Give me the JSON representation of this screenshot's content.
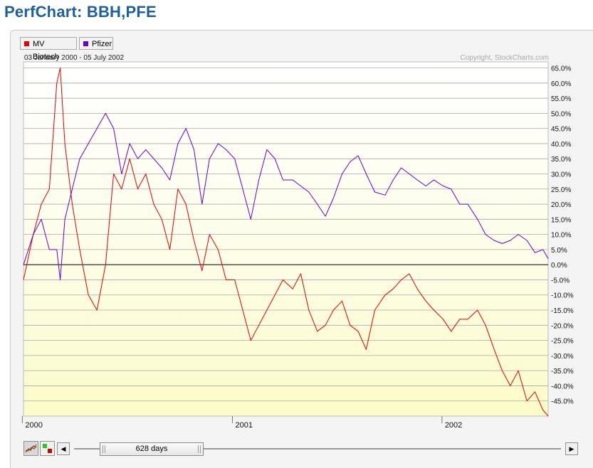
{
  "title": "PerfChart: BBH,PFE",
  "legend": [
    {
      "label": "MV Biotech",
      "color": "#e60000"
    },
    {
      "label": "Pfizer",
      "color": "#6600cc"
    }
  ],
  "date_range": "03 January 2000 - 05 July 2002",
  "copyright": "Copyright, StockCharts.com",
  "scrollbar": {
    "days_label": "628 days"
  },
  "chart_data": {
    "type": "line",
    "x_ticks": [
      "2000",
      "2001",
      "2002"
    ],
    "y_ticks": [
      "65.0%",
      "60.0%",
      "55.0%",
      "50.0%",
      "45.0%",
      "40.0%",
      "35.0%",
      "30.0%",
      "25.0%",
      "20.0%",
      "15.0%",
      "10.0%",
      "5.0%",
      "0.0%",
      "-5.0%",
      "-10.0%",
      "-15.0%",
      "-20.0%",
      "-25.0%",
      "-30.0%",
      "-35.0%",
      "-40.0%",
      "-45.0%"
    ],
    "ylim": [
      -50,
      67
    ],
    "grid": true,
    "x": [
      "2000-01-03",
      "2000-01-20",
      "2000-02-03",
      "2000-02-17",
      "2000-03-01",
      "2000-03-07",
      "2000-03-15",
      "2000-03-28",
      "2000-04-10",
      "2000-04-25",
      "2000-05-10",
      "2000-05-25",
      "2000-06-08",
      "2000-06-22",
      "2000-07-06",
      "2000-07-20",
      "2000-08-03",
      "2000-08-17",
      "2000-08-31",
      "2000-09-14",
      "2000-09-28",
      "2000-10-12",
      "2000-10-26",
      "2000-11-09",
      "2000-11-22",
      "2000-12-07",
      "2000-12-21",
      "2001-01-05",
      "2001-01-19",
      "2001-02-02",
      "2001-02-16",
      "2001-03-02",
      "2001-03-16",
      "2001-03-30",
      "2001-04-16",
      "2001-04-30",
      "2001-05-14",
      "2001-05-29",
      "2001-06-12",
      "2001-06-26",
      "2001-07-11",
      "2001-07-25",
      "2001-08-08",
      "2001-08-22",
      "2001-09-06",
      "2001-09-24",
      "2001-10-08",
      "2001-10-22",
      "2001-11-05",
      "2001-11-19",
      "2001-12-04",
      "2001-12-18",
      "2002-01-03",
      "2002-01-17",
      "2002-02-01",
      "2002-02-15",
      "2002-03-04",
      "2002-03-18",
      "2002-04-02",
      "2002-04-16",
      "2002-04-30",
      "2002-05-14",
      "2002-05-29",
      "2002-06-12",
      "2002-06-26",
      "2002-07-05"
    ],
    "series": [
      {
        "name": "MV Biotech",
        "values": [
          -5,
          10,
          20,
          25,
          60,
          65,
          40,
          20,
          5,
          -10,
          -15,
          0,
          30,
          25,
          35,
          25,
          30,
          20,
          15,
          5,
          25,
          20,
          8,
          -2,
          10,
          5,
          -5,
          -5,
          -15,
          -25,
          -20,
          -15,
          -10,
          -5,
          -8,
          -3,
          -15,
          -22,
          -20,
          -15,
          -12,
          -20,
          -22,
          -28,
          -15,
          -10,
          -8,
          -5,
          -3,
          -8,
          -12,
          -15,
          -18,
          -22,
          -18,
          -18,
          -15,
          -20,
          -28,
          -35,
          -40,
          -35,
          -45,
          -42,
          -48,
          -50
        ]
      },
      {
        "name": "Pfizer",
        "values": [
          0,
          10,
          15,
          5,
          5,
          -5,
          15,
          25,
          35,
          40,
          45,
          50,
          45,
          30,
          40,
          35,
          38,
          35,
          32,
          28,
          40,
          45,
          38,
          20,
          35,
          40,
          38,
          35,
          25,
          15,
          28,
          38,
          35,
          28,
          28,
          26,
          24,
          20,
          16,
          22,
          30,
          34,
          36,
          30,
          24,
          23,
          28,
          32,
          30,
          28,
          26,
          28,
          26,
          25,
          20,
          20,
          15,
          10,
          8,
          7,
          8,
          10,
          8,
          4,
          5,
          2
        ]
      }
    ]
  }
}
